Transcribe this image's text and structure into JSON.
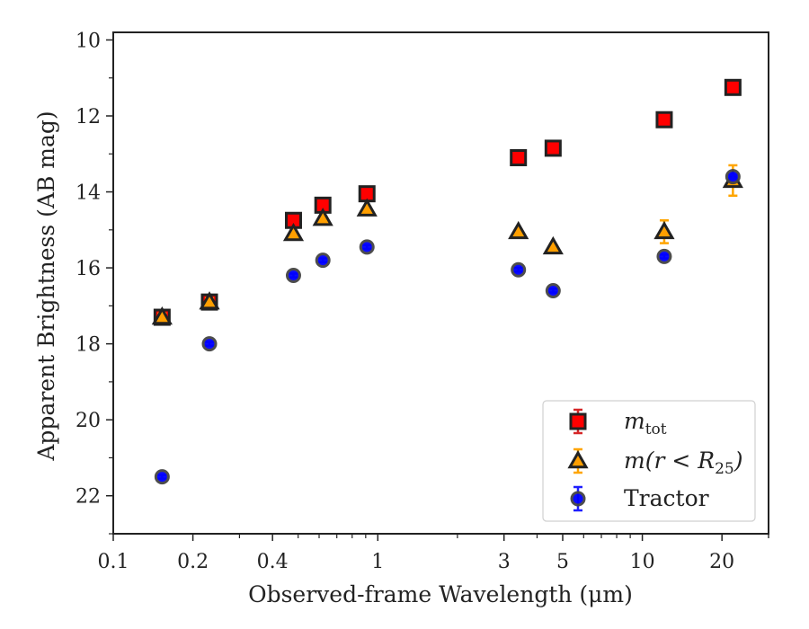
{
  "chart_data": {
    "type": "scatter",
    "xlabel": "Observed-frame Wavelength (μm)",
    "ylabel": "Apparent Brightness (AB mag)",
    "xscale": "log",
    "xlim": [
      0.1,
      30
    ],
    "ylim": [
      23,
      9.8
    ],
    "y_inverted": true,
    "grid": false,
    "legend_position": "lower-right",
    "x_ticks": [
      {
        "value": 0.1,
        "label": "0.1"
      },
      {
        "value": 0.2,
        "label": "0.2"
      },
      {
        "value": 0.4,
        "label": "0.4"
      },
      {
        "value": 1,
        "label": "1"
      },
      {
        "value": 3,
        "label": "3"
      },
      {
        "value": 5,
        "label": "5"
      },
      {
        "value": 10,
        "label": "10"
      },
      {
        "value": 20,
        "label": "20"
      }
    ],
    "y_ticks": [
      {
        "value": 10,
        "label": "10"
      },
      {
        "value": 12,
        "label": "12"
      },
      {
        "value": 14,
        "label": "14"
      },
      {
        "value": 16,
        "label": "16"
      },
      {
        "value": 18,
        "label": "18"
      },
      {
        "value": 20,
        "label": "20"
      },
      {
        "value": 22,
        "label": "22"
      }
    ],
    "series": [
      {
        "name": "m_tot",
        "legend_main": "m",
        "legend_sub": "tot",
        "marker": "square",
        "color": "#ff0000",
        "edge": "#222222",
        "error_color": "#d62728",
        "points": [
          {
            "x": 0.153,
            "y": 17.3,
            "err": 0.1
          },
          {
            "x": 0.231,
            "y": 16.9,
            "err": 0.1
          },
          {
            "x": 0.48,
            "y": 14.75,
            "err": 0.05
          },
          {
            "x": 0.62,
            "y": 14.35,
            "err": 0.05
          },
          {
            "x": 0.91,
            "y": 14.05,
            "err": 0.05
          },
          {
            "x": 3.4,
            "y": 13.1,
            "err": 0.05
          },
          {
            "x": 4.6,
            "y": 12.85,
            "err": 0.05
          },
          {
            "x": 12.1,
            "y": 12.1,
            "err": 0.05
          },
          {
            "x": 22.0,
            "y": 11.25,
            "err": 0.05
          }
        ]
      },
      {
        "name": "m(r<R_25)",
        "legend_main": "m(r < R",
        "legend_sub": "25",
        "legend_end": ")",
        "marker": "triangle",
        "color": "#ff9f00",
        "edge": "#222222",
        "error_color": "#ffa500",
        "points": [
          {
            "x": 0.153,
            "y": 17.3,
            "err": 0.1
          },
          {
            "x": 0.231,
            "y": 16.9,
            "err": 0.1
          },
          {
            "x": 0.48,
            "y": 15.1,
            "err": 0.05
          },
          {
            "x": 0.62,
            "y": 14.7,
            "err": 0.05
          },
          {
            "x": 0.91,
            "y": 14.45,
            "err": 0.05
          },
          {
            "x": 3.4,
            "y": 15.05,
            "err": 0.05
          },
          {
            "x": 4.6,
            "y": 15.45,
            "err": 0.05
          },
          {
            "x": 12.1,
            "y": 15.05,
            "err": 0.3
          },
          {
            "x": 22.0,
            "y": 13.7,
            "err": 0.4
          }
        ]
      },
      {
        "name": "Tractor",
        "legend_main": "Tractor",
        "marker": "circle",
        "color": "#0000ff",
        "edge": "#444444",
        "error_color": "#1f1fff",
        "points": [
          {
            "x": 0.153,
            "y": 21.5,
            "err": 0.05
          },
          {
            "x": 0.231,
            "y": 18.0,
            "err": 0.05
          },
          {
            "x": 0.48,
            "y": 16.2,
            "err": 0.05
          },
          {
            "x": 0.62,
            "y": 15.8,
            "err": 0.05
          },
          {
            "x": 0.91,
            "y": 15.45,
            "err": 0.05
          },
          {
            "x": 3.4,
            "y": 16.05,
            "err": 0.05
          },
          {
            "x": 4.6,
            "y": 16.6,
            "err": 0.05
          },
          {
            "x": 12.1,
            "y": 15.7,
            "err": 0.05
          },
          {
            "x": 22.0,
            "y": 13.6,
            "err": 0.05
          }
        ]
      }
    ]
  }
}
